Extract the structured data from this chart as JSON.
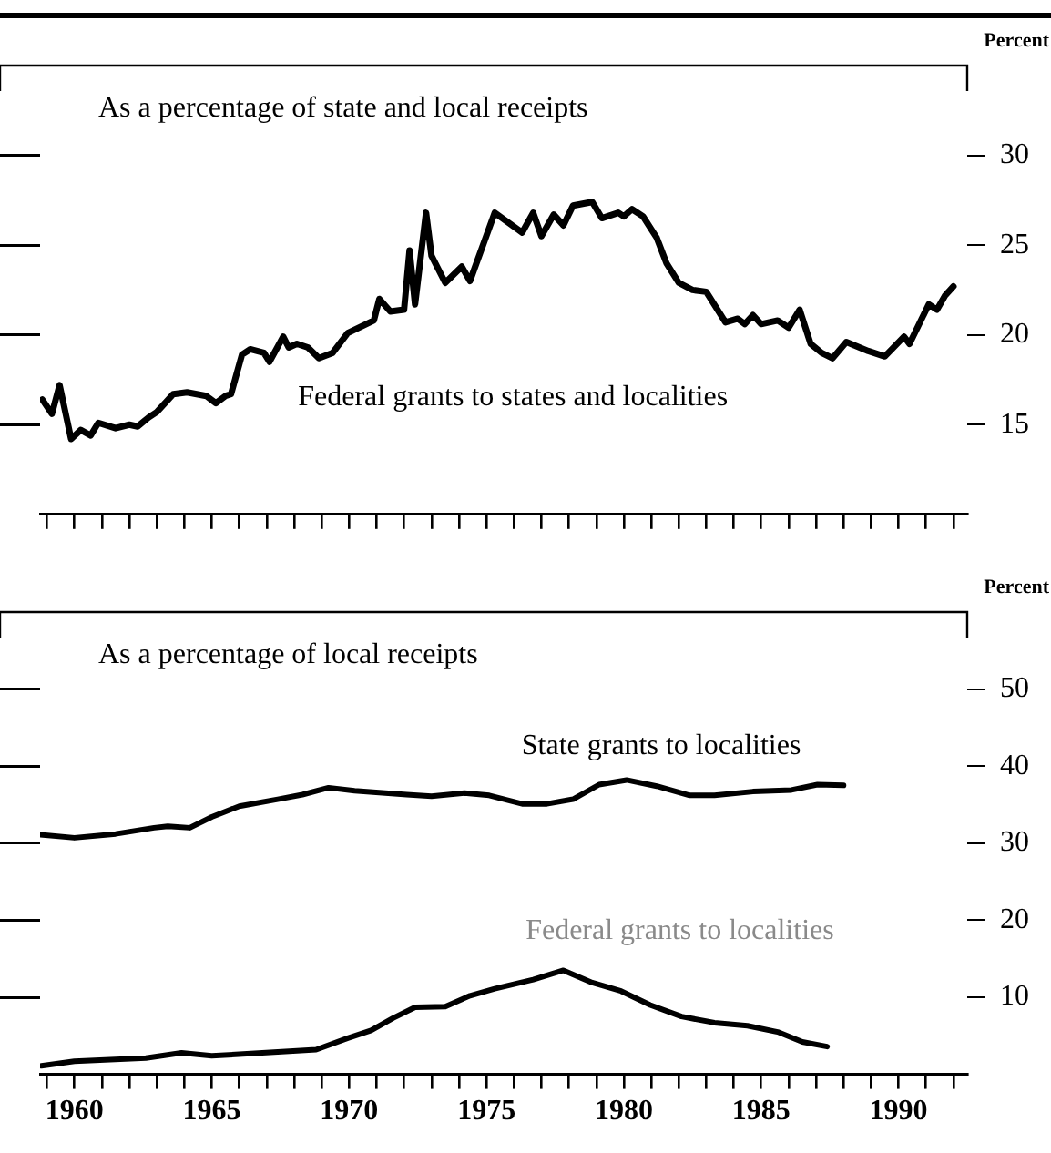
{
  "chart_data": [
    {
      "type": "line",
      "title": "As a percentage of state and local receipts",
      "ylabel": "Percent",
      "xlim": [
        1958.75,
        1992.5
      ],
      "ylim": [
        10,
        35
      ],
      "yticks": [
        15,
        20,
        25,
        30
      ],
      "xticks": [
        1959,
        1960,
        1961,
        1962,
        1963,
        1964,
        1965,
        1966,
        1967,
        1968,
        1969,
        1970,
        1971,
        1972,
        1973,
        1974,
        1975,
        1976,
        1977,
        1978,
        1979,
        1980,
        1981,
        1982,
        1983,
        1984,
        1985,
        1986,
        1987,
        1988,
        1989,
        1990,
        1991,
        1992
      ],
      "tick_labels": "y",
      "grid": false,
      "legend": false,
      "marker": "none",
      "series": [
        {
          "name": "Federal grants to states and localities",
          "color": "#000000",
          "x": [
            1958.83,
            1959.18,
            1959.46,
            1959.88,
            1960.23,
            1960.59,
            1960.87,
            1961.5,
            1962.0,
            1962.3,
            1962.7,
            1963.0,
            1963.6,
            1964.1,
            1964.8,
            1965.15,
            1965.5,
            1965.7,
            1966.1,
            1966.4,
            1966.9,
            1967.1,
            1967.6,
            1967.8,
            1968.1,
            1968.5,
            1968.9,
            1969.4,
            1969.95,
            1970.9,
            1971.1,
            1971.5,
            1972.0,
            1972.2,
            1972.4,
            1972.8,
            1973.0,
            1973.5,
            1974.1,
            1974.4,
            1975.3,
            1976.3,
            1976.7,
            1977.0,
            1977.45,
            1977.8,
            1978.15,
            1978.85,
            1979.2,
            1979.8,
            1980.0,
            1980.3,
            1980.7,
            1981.2,
            1981.55,
            1982.0,
            1982.5,
            1983.0,
            1983.7,
            1984.15,
            1984.4,
            1984.7,
            1985.0,
            1985.6,
            1986.0,
            1986.4,
            1986.8,
            1987.2,
            1987.6,
            1988.1,
            1988.9,
            1989.5,
            1990.2,
            1990.4,
            1991.1,
            1991.4,
            1991.7,
            1992.0
          ],
          "values": [
            16.4,
            15.6,
            17.2,
            14.2,
            14.7,
            14.4,
            15.1,
            14.8,
            15.0,
            14.9,
            15.4,
            15.7,
            16.7,
            16.8,
            16.6,
            16.2,
            16.6,
            16.7,
            18.9,
            19.2,
            19.0,
            18.5,
            19.9,
            19.3,
            19.5,
            19.3,
            18.7,
            19.0,
            20.1,
            20.8,
            22.0,
            21.3,
            21.4,
            24.7,
            21.7,
            26.8,
            24.4,
            22.9,
            23.8,
            23.0,
            26.8,
            25.7,
            26.8,
            25.5,
            26.7,
            26.1,
            27.2,
            27.4,
            26.5,
            26.8,
            26.6,
            27.0,
            26.6,
            25.4,
            24.0,
            22.9,
            22.5,
            22.4,
            20.7,
            20.9,
            20.6,
            21.1,
            20.6,
            20.8,
            20.4,
            21.4,
            19.5,
            19.0,
            18.7,
            19.6,
            19.1,
            18.8,
            19.9,
            19.5,
            21.7,
            21.4,
            22.2,
            22.7
          ]
        }
      ]
    },
    {
      "type": "line",
      "title": "As a percentage of local receipts",
      "ylabel": "Percent",
      "xlim": [
        1958.75,
        1992.5
      ],
      "ylim": [
        0,
        60
      ],
      "yticks": [
        10,
        20,
        30,
        40,
        50
      ],
      "xticks": [
        {
          "value": 1959,
          "label": null
        },
        1960,
        {
          "value": 1961,
          "label": null
        },
        {
          "value": 1962,
          "label": null
        },
        {
          "value": 1963,
          "label": null
        },
        {
          "value": 1964,
          "label": null
        },
        1965,
        {
          "value": 1966,
          "label": null
        },
        {
          "value": 1967,
          "label": null
        },
        {
          "value": 1968,
          "label": null
        },
        {
          "value": 1969,
          "label": null
        },
        1970,
        {
          "value": 1971,
          "label": null
        },
        {
          "value": 1972,
          "label": null
        },
        {
          "value": 1973,
          "label": null
        },
        {
          "value": 1974,
          "label": null
        },
        1975,
        {
          "value": 1976,
          "label": null
        },
        {
          "value": 1977,
          "label": null
        },
        {
          "value": 1978,
          "label": null
        },
        {
          "value": 1979,
          "label": null
        },
        1980,
        {
          "value": 1981,
          "label": null
        },
        {
          "value": 1982,
          "label": null
        },
        {
          "value": 1983,
          "label": null
        },
        {
          "value": 1984,
          "label": null
        },
        1985,
        {
          "value": 1986,
          "label": null
        },
        {
          "value": 1987,
          "label": null
        },
        {
          "value": 1988,
          "label": null
        },
        {
          "value": 1989,
          "label": null
        },
        1990,
        {
          "value": 1991,
          "label": null
        },
        {
          "value": 1992,
          "label": null
        }
      ],
      "grid": false,
      "legend": false,
      "marker": "none",
      "series": [
        {
          "name": "State grants to localities",
          "color": "#000000",
          "x": [
            1958.75,
            1960,
            1961.5,
            1962.9,
            1963.4,
            1964.2,
            1965.0,
            1966.0,
            1967.4,
            1968.3,
            1969.25,
            1970.2,
            1972.1,
            1973.0,
            1974.2,
            1975.1,
            1976.3,
            1977.2,
            1978.15,
            1979.1,
            1980.1,
            1981.2,
            1982.4,
            1983.3,
            1984.7,
            1986.1,
            1987.05,
            1988.0
          ],
          "values": [
            31.1,
            30.7,
            31.2,
            32.0,
            32.2,
            32.0,
            33.4,
            34.8,
            35.7,
            36.3,
            37.2,
            36.8,
            36.3,
            36.1,
            36.5,
            36.2,
            35.1,
            35.1,
            35.7,
            37.6,
            38.2,
            37.4,
            36.2,
            36.2,
            36.7,
            36.9,
            37.6,
            37.5
          ]
        },
        {
          "name": "Federal grants to localities",
          "color": "#000000",
          "x": [
            1958.8,
            1960,
            1962.6,
            1963.9,
            1965.0,
            1967.4,
            1968.8,
            1969.95,
            1970.8,
            1971.6,
            1972.4,
            1973.5,
            1974.4,
            1975.3,
            1976.7,
            1977.8,
            1978.85,
            1979.9,
            1980.96,
            1982.1,
            1983.3,
            1984.5,
            1985.6,
            1986.5,
            1987.4
          ],
          "values": [
            1.1,
            1.7,
            2.1,
            2.8,
            2.4,
            2.9,
            3.2,
            4.7,
            5.7,
            7.3,
            8.7,
            8.8,
            10.2,
            11.1,
            12.3,
            13.5,
            11.9,
            10.8,
            9.0,
            7.5,
            6.7,
            6.3,
            5.5,
            4.2,
            3.6
          ]
        }
      ]
    }
  ]
}
